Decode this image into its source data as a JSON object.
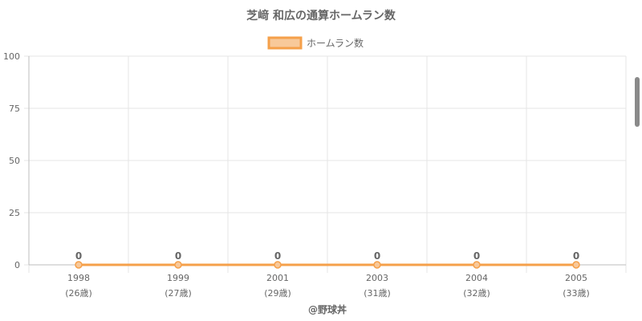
{
  "chart_data": {
    "type": "line",
    "title": "芝﨑 和広の通算ホームラン数",
    "categories": [
      "1998",
      "1999",
      "2001",
      "2003",
      "2004",
      "2005"
    ],
    "age_labels": [
      "(26歳)",
      "(27歳)",
      "(29歳)",
      "(31歳)",
      "(32歳)",
      "(33歳)"
    ],
    "series": [
      {
        "name": "ホームラン数",
        "values": [
          0,
          0,
          0,
          0,
          0,
          0
        ]
      }
    ],
    "data_labels": [
      "0",
      "0",
      "0",
      "0",
      "0",
      "0"
    ],
    "ylim": [
      0,
      100
    ],
    "yticks": [
      0,
      25,
      50,
      75,
      100
    ],
    "legend_position": "top-center",
    "grid": true,
    "watermark": "@野球丼",
    "colors": {
      "line": "#f5a04a",
      "legend_fill": "#f8c99a",
      "grid": "#e6e6e6",
      "axis": "#bdbdbd",
      "text": "#666666"
    }
  }
}
